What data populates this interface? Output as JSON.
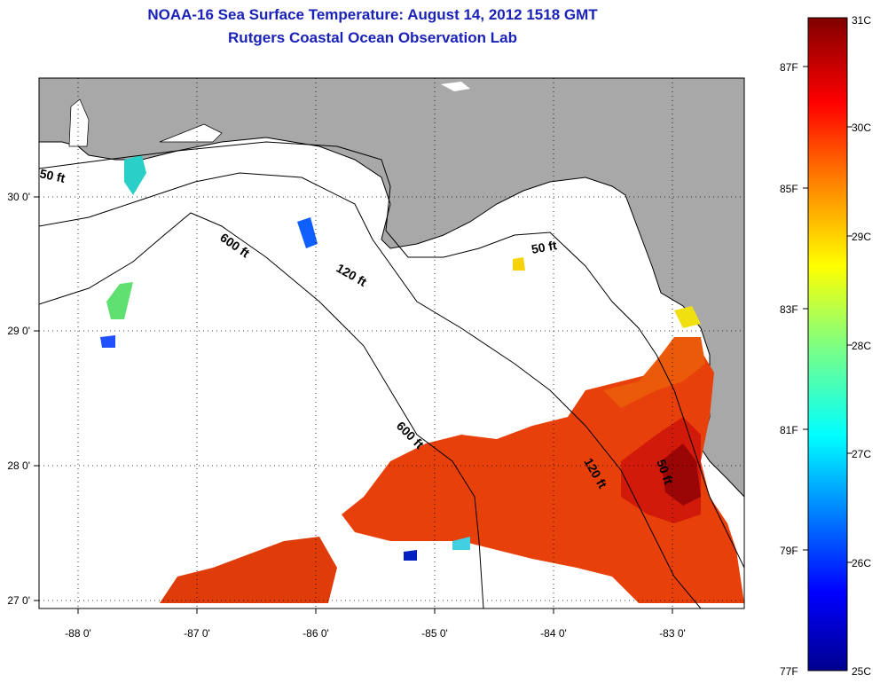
{
  "header": {
    "title": "NOAA-16 Sea Surface Temperature:  August 14, 2012 1518 GMT",
    "subtitle": "Rutgers Coastal Ocean Observation Lab"
  },
  "map": {
    "lon_ticks": [
      "-88 0'",
      "-87 0'",
      "-86 0'",
      "-85 0'",
      "-84 0'",
      "-83 0'"
    ],
    "lat_ticks": [
      "30 0'",
      "29 0'",
      "28 0'",
      "27 0'"
    ],
    "lon_range": [
      -88.33,
      -82.3
    ],
    "lat_range": [
      26.95,
      30.9
    ],
    "grid": true,
    "land_color": "#a8a8a8",
    "isobaths": [
      {
        "label": "50 ft"
      },
      {
        "label": "600 ft"
      },
      {
        "label": "120 ft"
      },
      {
        "label": "50 ft"
      },
      {
        "label": "600 ft"
      },
      {
        "label": "120 ft"
      },
      {
        "label": "50 ft"
      }
    ]
  },
  "colorbar": {
    "celsius": [
      "31C",
      "30C",
      "29C",
      "28C",
      "27C",
      "26C",
      "25C"
    ],
    "fahrenheit": [
      "87F",
      "85F",
      "83F",
      "81F",
      "79F",
      "77F"
    ],
    "range_c": [
      25,
      31
    ],
    "colors": [
      "#00008f",
      "#0000ff",
      "#0080ff",
      "#00ffff",
      "#80ff80",
      "#ffff00",
      "#ff8000",
      "#ff0000",
      "#800000"
    ]
  }
}
